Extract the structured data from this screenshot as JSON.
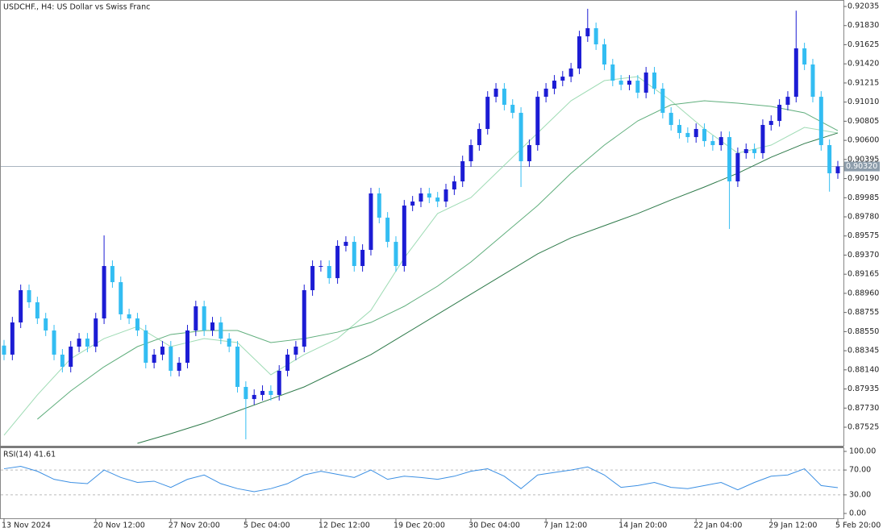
{
  "chart_data": {
    "type": "candlestick",
    "title": "USDCHF., H4:  US Dollar vs Swiss Franc",
    "up_color": "#1c1cd4",
    "down_color": "#33bdf2",
    "categories": [
      "13 Nov 2024",
      null,
      null,
      null,
      null,
      null,
      null,
      null,
      null,
      null,
      null,
      "20 Nov 12:00",
      null,
      null,
      null,
      null,
      null,
      null,
      null,
      null,
      "27 Nov 20:00",
      null,
      null,
      null,
      null,
      null,
      null,
      null,
      null,
      "5 Dec 04:00",
      null,
      null,
      null,
      null,
      null,
      null,
      null,
      null,
      "12 Dec 12:00",
      null,
      null,
      null,
      null,
      null,
      null,
      null,
      null,
      "19 Dec 20:00",
      null,
      null,
      null,
      null,
      null,
      null,
      null,
      null,
      "30 Dec 04:00",
      null,
      null,
      null,
      null,
      null,
      null,
      null,
      null,
      "7 Jan 12:00",
      null,
      null,
      null,
      null,
      null,
      null,
      null,
      null,
      "14 Jan 20:00",
      null,
      null,
      null,
      null,
      null,
      null,
      null,
      null,
      "22 Jan 04:00",
      null,
      null,
      null,
      null,
      null,
      null,
      null,
      null,
      "29 Jan 12:00",
      null,
      null,
      null,
      null,
      null,
      null,
      null,
      "5 Feb 20:00"
    ],
    "open": [
      0.884,
      0.88303,
      0.88648,
      0.88994,
      0.88864,
      0.88691,
      0.88562,
      0.88303,
      0.88173,
      0.88389,
      0.88475,
      0.88389,
      0.88691,
      0.89253,
      0.8908,
      0.88735,
      0.88691,
      0.88562,
      0.88216,
      0.88303,
      0.88389,
      0.8813,
      0.88216,
      0.88562,
      0.88821,
      0.88562,
      0.88648,
      0.88475,
      0.88389,
      0.87957,
      0.87827,
      0.87871,
      0.87914,
      0.87871,
      0.8813,
      0.88303,
      0.88389,
      0.88994,
      0.89253,
      0.89253,
      0.89123,
      0.89469,
      0.89512,
      0.89253,
      0.89426,
      0.90031,
      0.89771,
      0.89512,
      0.89253,
      0.89901,
      0.89944,
      0.90031,
      0.89987,
      0.89944,
      0.90074,
      0.9016,
      0.90376,
      0.90549,
      0.90722,
      0.91067,
      0.91154,
      0.90981,
      0.90895,
      0.90376,
      0.90549,
      0.91067,
      0.91154,
      0.9124,
      0.91283,
      0.9137,
      0.91715,
      0.91802,
      0.91629,
      0.91413,
      0.9124,
      0.91197,
      0.9124,
      0.91111,
      0.91327,
      0.91154,
      0.90895,
      0.90765,
      0.90679,
      0.90635,
      0.90722,
      0.90592,
      0.90549,
      0.90635,
      0.9016,
      0.90463,
      0.90506,
      0.90463,
      0.90765,
      0.90808,
      0.90981,
      0.91067,
      0.91586,
      0.91413,
      0.91067,
      0.90549,
      0.90247
    ],
    "high": [
      0.8846,
      0.88708,
      0.89054,
      0.89054,
      0.88924,
      0.88751,
      0.88622,
      0.88363,
      0.88449,
      0.88535,
      0.88535,
      0.88751,
      0.89581,
      0.89313,
      0.8914,
      0.88795,
      0.88751,
      0.88622,
      0.88363,
      0.88449,
      0.88449,
      0.88276,
      0.88622,
      0.88881,
      0.88881,
      0.88708,
      0.88708,
      0.88535,
      0.88449,
      0.88017,
      0.87931,
      0.87974,
      0.87974,
      0.8819,
      0.88363,
      0.88449,
      0.89054,
      0.89313,
      0.89313,
      0.89313,
      0.89529,
      0.89572,
      0.89572,
      0.89486,
      0.90091,
      0.90091,
      0.89831,
      0.89572,
      0.89961,
      0.90004,
      0.90091,
      0.90091,
      0.90047,
      0.90134,
      0.9022,
      0.90436,
      0.90609,
      0.90782,
      0.91127,
      0.91214,
      0.91214,
      0.91041,
      0.90955,
      0.90609,
      0.91127,
      0.91214,
      0.913,
      0.91343,
      0.9143,
      0.91775,
      0.9201,
      0.91862,
      0.91689,
      0.91473,
      0.913,
      0.913,
      0.913,
      0.91387,
      0.91387,
      0.91214,
      0.90955,
      0.90825,
      0.90739,
      0.90782,
      0.90782,
      0.90652,
      0.90695,
      0.90695,
      0.90523,
      0.90566,
      0.90566,
      0.90825,
      0.90868,
      0.91041,
      0.91127,
      0.9199,
      0.91646,
      0.91473,
      0.91127,
      0.90609,
      0.9038
    ],
    "low": [
      0.88243,
      0.88243,
      0.88588,
      0.88804,
      0.88631,
      0.88502,
      0.88243,
      0.88113,
      0.88113,
      0.88329,
      0.88329,
      0.88329,
      0.88631,
      0.8902,
      0.88675,
      0.88631,
      0.88502,
      0.88156,
      0.88156,
      0.88243,
      0.8807,
      0.8807,
      0.88156,
      0.88502,
      0.88502,
      0.88502,
      0.88415,
      0.88329,
      0.87897,
      0.87395,
      0.87767,
      0.87811,
      0.87811,
      0.87811,
      0.8807,
      0.88243,
      0.88329,
      0.88934,
      0.89193,
      0.89063,
      0.89063,
      0.89409,
      0.89193,
      0.89193,
      0.89366,
      0.89711,
      0.89452,
      0.89193,
      0.89193,
      0.89841,
      0.89884,
      0.89927,
      0.89884,
      0.89884,
      0.90014,
      0.901,
      0.90316,
      0.90489,
      0.90662,
      0.91007,
      0.90921,
      0.90835,
      0.901,
      0.90316,
      0.90489,
      0.91007,
      0.91094,
      0.9118,
      0.91223,
      0.9131,
      0.91655,
      0.91569,
      0.91353,
      0.9118,
      0.91137,
      0.91137,
      0.91051,
      0.91051,
      0.91094,
      0.90835,
      0.90705,
      0.90619,
      0.90575,
      0.90575,
      0.90532,
      0.90489,
      0.90489,
      0.8965,
      0.901,
      0.90403,
      0.90403,
      0.90403,
      0.90705,
      0.90748,
      0.90921,
      0.91007,
      0.91353,
      0.91007,
      0.90489,
      0.9005,
      0.90187
    ],
    "close": [
      0.88303,
      0.88648,
      0.88994,
      0.88864,
      0.88691,
      0.88562,
      0.88303,
      0.88173,
      0.88389,
      0.88475,
      0.88389,
      0.88691,
      0.89253,
      0.8908,
      0.88735,
      0.88691,
      0.88562,
      0.88216,
      0.88303,
      0.88389,
      0.8813,
      0.88216,
      0.88562,
      0.88821,
      0.88562,
      0.88648,
      0.88475,
      0.88389,
      0.87957,
      0.87827,
      0.87871,
      0.87914,
      0.87871,
      0.8813,
      0.88303,
      0.88389,
      0.88994,
      0.89253,
      0.89253,
      0.89123,
      0.89469,
      0.89512,
      0.89253,
      0.89426,
      0.90031,
      0.89771,
      0.89512,
      0.89253,
      0.89901,
      0.89944,
      0.90031,
      0.89987,
      0.89944,
      0.90074,
      0.9016,
      0.90376,
      0.90549,
      0.90722,
      0.91067,
      0.91154,
      0.90981,
      0.90895,
      0.90376,
      0.90549,
      0.91067,
      0.91154,
      0.9124,
      0.91283,
      0.9137,
      0.91715,
      0.91802,
      0.91629,
      0.91413,
      0.9124,
      0.91197,
      0.9124,
      0.91111,
      0.91327,
      0.91154,
      0.90895,
      0.90765,
      0.90679,
      0.90635,
      0.90722,
      0.90592,
      0.90549,
      0.90635,
      0.9016,
      0.90463,
      0.90506,
      0.90463,
      0.90765,
      0.90808,
      0.90981,
      0.91067,
      0.91586,
      0.91413,
      0.91067,
      0.90549,
      0.90247,
      0.9032
    ],
    "overlays": [
      {
        "color": "#9edbb4",
        "x": [
          0,
          4,
          8,
          12,
          16,
          20,
          24,
          28,
          32,
          36,
          40,
          44,
          48,
          52,
          56,
          60,
          64,
          68,
          72,
          76,
          80,
          84,
          88,
          92,
          96,
          100
        ],
        "values": [
          0.87439,
          0.87871,
          0.88259,
          0.88475,
          0.88605,
          0.88389,
          0.88475,
          0.88432,
          0.88087,
          0.88303,
          0.88475,
          0.88778,
          0.89339,
          0.89815,
          0.89987,
          0.90333,
          0.90679,
          0.91024,
          0.9124,
          0.91283,
          0.91024,
          0.90722,
          0.90463,
          0.90549,
          0.90739,
          0.90679
        ]
      },
      {
        "color": "#5fae7c",
        "x": [
          4,
          8,
          12,
          16,
          20,
          24,
          28,
          32,
          36,
          40,
          44,
          48,
          52,
          56,
          60,
          64,
          68,
          72,
          76,
          80,
          84,
          88,
          92,
          96,
          100
        ],
        "values": [
          0.87611,
          0.87914,
          0.88173,
          0.88389,
          0.88519,
          0.88562,
          0.88562,
          0.88432,
          0.88475,
          0.88544,
          0.88648,
          0.88821,
          0.89037,
          0.89296,
          0.89599,
          0.89901,
          0.90247,
          0.90549,
          0.90808,
          0.90981,
          0.91024,
          0.90998,
          0.90964,
          0.90895,
          0.90704
        ]
      },
      {
        "color": "#2e7a4a",
        "x": [
          16,
          20,
          24,
          28,
          32,
          36,
          40,
          44,
          48,
          52,
          56,
          60,
          64,
          68,
          72,
          76,
          80,
          84,
          88,
          92,
          96,
          100
        ],
        "values": [
          0.87352,
          0.87456,
          0.87568,
          0.87698,
          0.87827,
          0.87957,
          0.8813,
          0.88303,
          0.88519,
          0.88735,
          0.88951,
          0.89167,
          0.89383,
          0.89555,
          0.89685,
          0.89815,
          0.89961,
          0.901,
          0.90247,
          0.90419,
          0.90566,
          0.90679
        ]
      }
    ],
    "ylim": [
      0.87335,
      0.92087
    ],
    "yticks": [
      0.92035,
      {
        "value": 0.9183,
        "label": "0.91830"
      },
      0.91625,
      {
        "value": 0.9142,
        "label": "0.91420"
      },
      0.91215,
      {
        "value": 0.9101,
        "label": "0.91010"
      },
      0.90805,
      {
        "value": 0.906,
        "label": "0.90600"
      },
      0.90395,
      {
        "value": 0.9019,
        "label": "0.90190"
      },
      0.89985,
      {
        "value": 0.8978,
        "label": "0.89780"
      },
      0.89575,
      {
        "value": 0.8937,
        "label": "0.89370"
      },
      0.89165,
      {
        "value": 0.8896,
        "label": "0.88960"
      },
      0.88755,
      {
        "value": 0.8855,
        "label": "0.88550"
      },
      0.88345,
      {
        "value": 0.8814,
        "label": "0.88140"
      },
      0.87935,
      {
        "value": 0.8773,
        "label": "0.87730"
      },
      0.87525
    ],
    "current_price": {
      "value": 0.9032,
      "label": "0.90320"
    },
    "rsi": {
      "label": "RSI(14) 41.61",
      "color": "#3b8fe3",
      "x": [
        0,
        2,
        4,
        6,
        8,
        10,
        12,
        14,
        16,
        18,
        20,
        22,
        24,
        26,
        28,
        30,
        32,
        34,
        36,
        38,
        40,
        42,
        44,
        46,
        48,
        50,
        52,
        54,
        56,
        58,
        60,
        62,
        64,
        66,
        68,
        70,
        72,
        74,
        76,
        78,
        80,
        82,
        84,
        86,
        88,
        90,
        92,
        94,
        96,
        98,
        100
      ],
      "values": [
        72,
        76,
        68,
        55,
        50,
        48,
        70,
        58,
        50,
        52,
        42,
        55,
        62,
        48,
        40,
        35,
        40,
        48,
        62,
        68,
        63,
        58,
        70,
        55,
        60,
        58,
        55,
        60,
        68,
        72,
        60,
        40,
        62,
        66,
        70,
        75,
        62,
        42,
        45,
        50,
        42,
        40,
        45,
        50,
        38,
        50,
        60,
        62,
        72,
        45,
        41.61
      ],
      "ylim": [
        0,
        100
      ],
      "yticks": [
        {
          "value": 100,
          "label": "100.00"
        },
        {
          "value": 70,
          "label": "70.00"
        },
        {
          "value": 30,
          "label": "30.00"
        },
        {
          "value": 0,
          "label": "0.00"
        }
      ],
      "levels": [
        30,
        70
      ]
    }
  }
}
